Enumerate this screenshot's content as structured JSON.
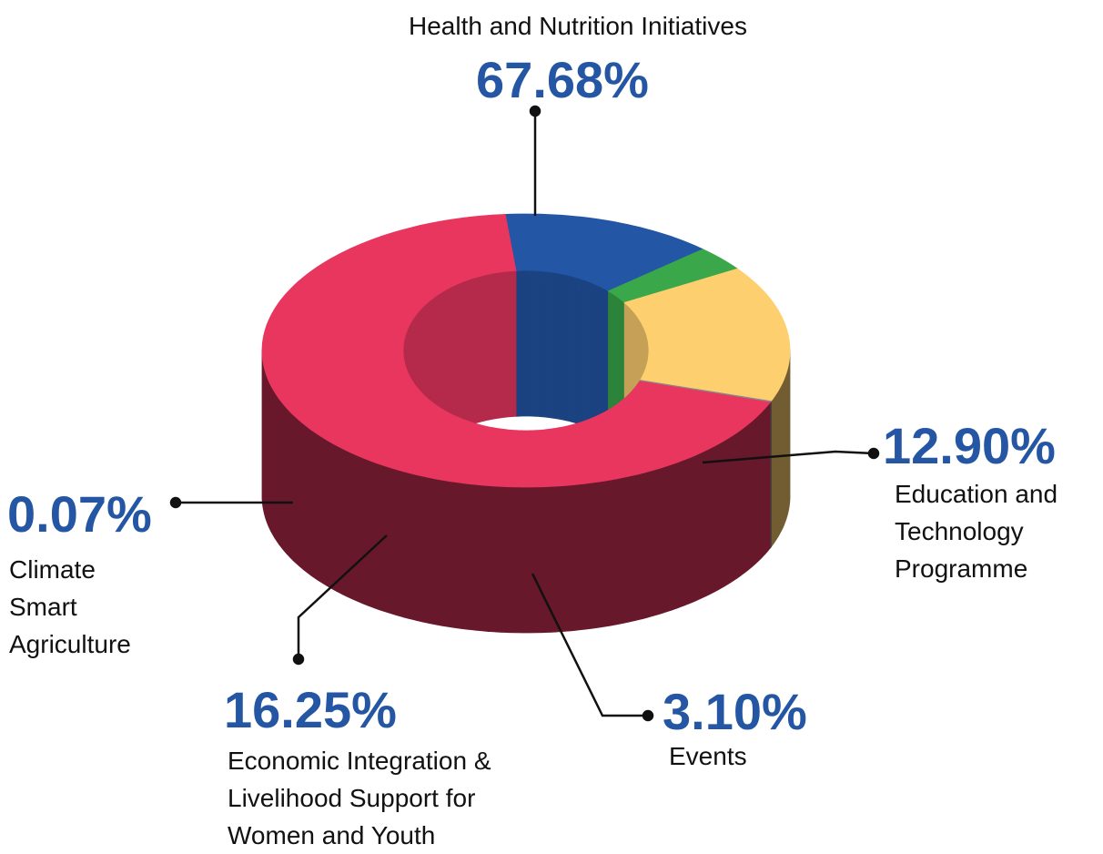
{
  "chart_data": {
    "type": "pie",
    "categories": [
      "Health and Nutrition Initiatives",
      "Education and Technology Programme",
      "Events",
      "Economic Integration & Livelihood Support for Women and Youth",
      "Climate Smart Agriculture"
    ],
    "values": [
      67.68,
      12.9,
      3.1,
      16.25,
      0.07
    ],
    "value_labels": [
      "67.68%",
      "12.90%",
      "3.10%",
      "16.25%",
      "0.07%"
    ],
    "colors": [
      "#e8365f",
      "#2356a5",
      "#3aa84a",
      "#fdcf6e",
      "#8a8a8a"
    ]
  }
}
